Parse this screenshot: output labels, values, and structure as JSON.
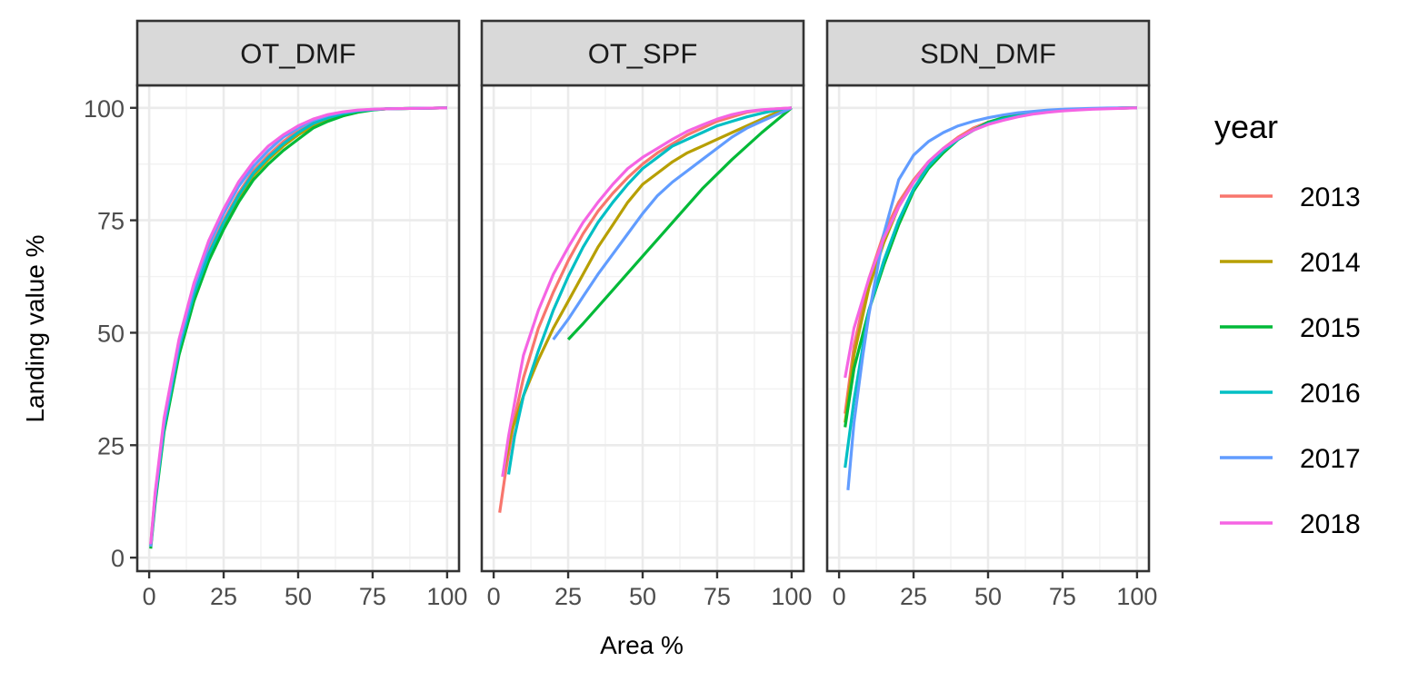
{
  "chart_data": {
    "type": "line",
    "xlabel": "Area %",
    "ylabel": "Landing value %",
    "xlim": [
      -4,
      104
    ],
    "ylim": [
      -3,
      105
    ],
    "x_ticks": [
      0,
      25,
      50,
      75,
      100
    ],
    "y_ticks": [
      0,
      25,
      50,
      75,
      100
    ],
    "grid": true,
    "legend": {
      "title": "year",
      "position": "right"
    },
    "panels": [
      {
        "name": "OT_DMF",
        "series": [
          {
            "name": "2013",
            "color": "#F8766D",
            "x": [
              0.5,
              2,
              5,
              10,
              15,
              20,
              25,
              30,
              35,
              40,
              45,
              50,
              55,
              60,
              65,
              70,
              75,
              80,
              90,
              100
            ],
            "y": [
              3,
              14,
              30,
              47,
              59,
              68,
              75,
              81,
              86,
              89.5,
              92.5,
              95,
              97,
              98,
              98.8,
              99.3,
              99.6,
              99.8,
              99.9,
              100
            ]
          },
          {
            "name": "2014",
            "color": "#B79F00",
            "x": [
              0.5,
              2,
              5,
              10,
              15,
              20,
              25,
              30,
              35,
              40,
              45,
              50,
              55,
              60,
              65,
              70,
              75,
              80,
              90,
              100
            ],
            "y": [
              2.5,
              13,
              29,
              46,
              58,
              67,
              74,
              80,
              85,
              88.5,
              91.5,
              94,
              96,
              97.5,
              98.5,
              99.2,
              99.6,
              99.8,
              99.9,
              100
            ]
          },
          {
            "name": "2015",
            "color": "#00BA38",
            "x": [
              0.5,
              2,
              5,
              10,
              15,
              20,
              25,
              30,
              35,
              40,
              45,
              50,
              55,
              60,
              65,
              70,
              75,
              80,
              90,
              100
            ],
            "y": [
              2,
              12,
              28,
              45,
              57,
              66,
              73,
              79,
              84,
              87.5,
              90.5,
              93,
              95.5,
              97,
              98.2,
              99,
              99.5,
              99.8,
              99.9,
              100
            ]
          },
          {
            "name": "2016",
            "color": "#00BFC4",
            "x": [
              0.5,
              2,
              5,
              10,
              15,
              20,
              25,
              30,
              35,
              40,
              45,
              50,
              55,
              60,
              65,
              70,
              75,
              80,
              90,
              100
            ],
            "y": [
              2.5,
              13,
              29,
              46.5,
              58.5,
              67.5,
              74.5,
              80.5,
              85.5,
              89,
              92,
              94.5,
              96.5,
              97.8,
              98.7,
              99.3,
              99.6,
              99.8,
              99.9,
              100
            ]
          },
          {
            "name": "2017",
            "color": "#619CFF",
            "x": [
              0.5,
              2,
              5,
              10,
              15,
              20,
              25,
              30,
              35,
              40,
              45,
              50,
              55,
              60,
              65,
              70,
              75,
              80,
              90,
              100
            ],
            "y": [
              2.5,
              13.5,
              30,
              47.5,
              60,
              69.5,
              76.5,
              82.5,
              87,
              90.5,
              93.5,
              95.5,
              97.2,
              98.3,
              99,
              99.4,
              99.7,
              99.8,
              99.9,
              100
            ]
          },
          {
            "name": "2018",
            "color": "#F564E3",
            "x": [
              0.5,
              2,
              5,
              10,
              15,
              20,
              25,
              30,
              35,
              40,
              45,
              50,
              55,
              60,
              65,
              70,
              75,
              80,
              90,
              100
            ],
            "y": [
              3,
              14.5,
              31,
              48.5,
              61,
              70.5,
              77.5,
              83.5,
              88,
              91.5,
              94,
              96,
              97.5,
              98.5,
              99.1,
              99.5,
              99.7,
              99.8,
              99.9,
              100
            ]
          }
        ]
      },
      {
        "name": "OT_SPF",
        "series": [
          {
            "name": "2013",
            "color": "#F8766D",
            "x": [
              2,
              4,
              7,
              10,
              15,
              20,
              25,
              30,
              35,
              40,
              45,
              50,
              55,
              60,
              65,
              70,
              75,
              80,
              85,
              90,
              95,
              100
            ],
            "y": [
              10,
              19,
              31,
              40,
              51,
              59,
              66,
              72,
              77,
              81,
              84.5,
              87.5,
              90,
              92,
              94,
              95.5,
              97,
              98,
              99,
              99.5,
              99.8,
              100
            ]
          },
          {
            "name": "2014",
            "color": "#B79F00",
            "x": [
              3,
              6,
              10,
              15,
              20,
              25,
              30,
              35,
              40,
              45,
              50,
              55,
              60,
              65,
              70,
              75,
              80,
              85,
              90,
              95,
              100
            ],
            "y": [
              18,
              28,
              36,
              44,
              51,
              57,
              63,
              69,
              74,
              79,
              83,
              85.5,
              88,
              90,
              91.5,
              93,
              94.5,
              96,
              97.5,
              99,
              100
            ]
          },
          {
            "name": "2015",
            "color": "#00BA38",
            "x": [
              25,
              30,
              40,
              50,
              60,
              70,
              80,
              90,
              100
            ],
            "y": [
              48.5,
              52,
              59.5,
              67,
              74.5,
              82,
              88.5,
              94.5,
              100
            ]
          },
          {
            "name": "2016",
            "color": "#00BFC4",
            "x": [
              5,
              7,
              10,
              15,
              20,
              25,
              30,
              35,
              40,
              45,
              50,
              55,
              60,
              65,
              70,
              75,
              80,
              85,
              90,
              95,
              100
            ],
            "y": [
              18.5,
              27,
              36,
              46,
              55,
              62.5,
              69,
              74.5,
              79,
              83,
              86.5,
              89,
              91.5,
              93,
              94.5,
              96,
              97,
              98,
              98.8,
              99.5,
              100
            ]
          },
          {
            "name": "2017",
            "color": "#619CFF",
            "x": [
              20,
              25,
              30,
              35,
              40,
              45,
              50,
              55,
              60,
              65,
              70,
              75,
              80,
              85,
              90,
              95,
              100
            ],
            "y": [
              48.5,
              53,
              58,
              63,
              67.5,
              72,
              76.5,
              80.5,
              83.5,
              86,
              88.5,
              91,
              93.5,
              95.5,
              97,
              98.5,
              100
            ]
          },
          {
            "name": "2018",
            "color": "#F564E3",
            "x": [
              3,
              5,
              8,
              10,
              15,
              20,
              25,
              30,
              35,
              40,
              45,
              50,
              55,
              60,
              65,
              70,
              75,
              80,
              85,
              90,
              95,
              100
            ],
            "y": [
              18,
              27,
              38,
              45,
              55,
              63,
              69,
              74.5,
              79,
              83,
              86.5,
              89,
              91,
              93,
              94.8,
              96.2,
              97.5,
              98.5,
              99.2,
              99.6,
              99.8,
              100
            ]
          }
        ]
      },
      {
        "name": "SDN_DMF",
        "series": [
          {
            "name": "2013",
            "color": "#F8766D",
            "x": [
              2,
              5,
              10,
              15,
              20,
              25,
              30,
              35,
              40,
              45,
              50,
              55,
              60,
              65,
              70,
              75,
              80,
              85,
              90,
              95,
              100
            ],
            "y": [
              32,
              47,
              62,
              72,
              79,
              84,
              88,
              91,
              93.5,
              95.5,
              96.8,
              97.6,
              98.3,
              98.8,
              99.2,
              99.5,
              99.7,
              99.8,
              99.9,
              99.95,
              100
            ]
          },
          {
            "name": "2014",
            "color": "#B79F00",
            "x": [
              2,
              5,
              10,
              15,
              20,
              25,
              30,
              35,
              40,
              45,
              50,
              55,
              60,
              65,
              70,
              75,
              80,
              85,
              90,
              95,
              100
            ],
            "y": [
              30,
              45,
              60,
              70,
              78,
              83.5,
              87.5,
              90.5,
              93,
              95,
              96.5,
              97.5,
              98.2,
              98.8,
              99.2,
              99.5,
              99.7,
              99.8,
              99.9,
              99.95,
              100
            ]
          },
          {
            "name": "2015",
            "color": "#00BA38",
            "x": [
              2,
              5,
              10,
              15,
              20,
              25,
              30,
              35,
              40,
              45,
              50,
              55,
              60,
              65,
              70,
              75,
              80,
              85,
              90,
              95,
              100
            ],
            "y": [
              29,
              42,
              55,
              65,
              74,
              81.5,
              86.5,
              90,
              93,
              95,
              96.8,
              97.8,
              98.5,
              99,
              99.3,
              99.5,
              99.7,
              99.8,
              99.9,
              99.95,
              100
            ]
          },
          {
            "name": "2016",
            "color": "#00BFC4",
            "x": [
              2,
              5,
              8,
              10,
              15,
              20,
              25,
              30,
              35,
              40,
              45,
              50,
              55,
              60,
              65,
              70,
              75,
              80,
              85,
              90,
              95,
              100
            ],
            "y": [
              20,
              35,
              47,
              55,
              66,
              75,
              82,
              87,
              90.5,
              93,
              95,
              96.5,
              97.5,
              98.2,
              98.8,
              99.2,
              99.5,
              99.7,
              99.8,
              99.9,
              99.95,
              100
            ]
          },
          {
            "name": "2017",
            "color": "#619CFF",
            "x": [
              3,
              5,
              8,
              10,
              15,
              20,
              25,
              30,
              35,
              40,
              45,
              50,
              55,
              60,
              65,
              70,
              75,
              80,
              85,
              90,
              95,
              100
            ],
            "y": [
              15,
              30,
              45,
              54,
              72,
              84,
              89.5,
              92.5,
              94.5,
              96,
              97,
              97.8,
              98.4,
              98.9,
              99.2,
              99.5,
              99.7,
              99.8,
              99.9,
              99.95,
              99.98,
              100
            ]
          },
          {
            "name": "2018",
            "color": "#F564E3",
            "x": [
              2,
              5,
              10,
              15,
              20,
              25,
              30,
              35,
              40,
              45,
              50,
              55,
              60,
              65,
              70,
              75,
              80,
              85,
              90,
              95,
              100
            ],
            "y": [
              40,
              51,
              62,
              71,
              78,
              83.5,
              88,
              91,
              93.2,
              95,
              96.3,
              97.2,
              98,
              98.6,
              99,
              99.3,
              99.5,
              99.7,
              99.8,
              99.9,
              100
            ]
          }
        ]
      }
    ]
  }
}
